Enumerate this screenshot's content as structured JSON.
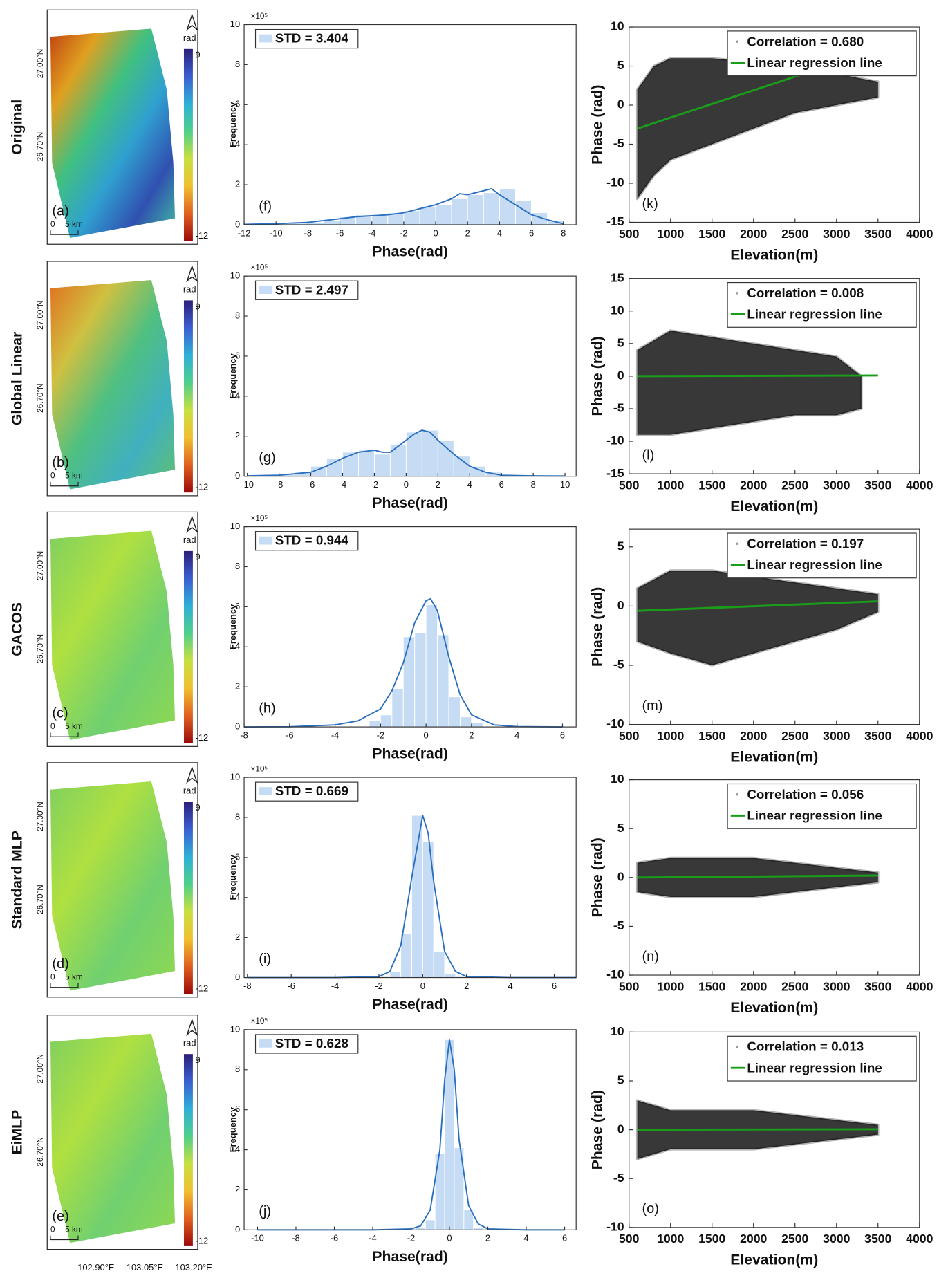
{
  "chart_data": [
    {
      "type": "map",
      "row_label": "Original",
      "panel": "(a)",
      "colorbar_label": "rad",
      "clim": [
        -12,
        9
      ],
      "cticks": [
        9,
        -12
      ],
      "colormap": [
        "#2b1f7a",
        "#3b5fd0",
        "#2fb0d8",
        "#4fd08a",
        "#c8e040",
        "#f0c030",
        "#e06020",
        "#9a0a0a"
      ],
      "colors": [
        "#c04010",
        "#e0a020",
        "#40c080",
        "#30a0d0",
        "#3050b0",
        "#40c0a0"
      ],
      "lat_ticks": [
        "27.00°N",
        "26.70°N"
      ],
      "scale_labels": [
        "0",
        "5 km"
      ]
    },
    {
      "type": "histogram",
      "panel": "(f)",
      "legend": "STD = 3.404",
      "y_multiplier": "×10⁵",
      "bins": [
        -12,
        -11,
        -10,
        -9,
        -8,
        -7,
        -6,
        -5,
        -4,
        -3,
        -2,
        -1,
        0,
        1,
        2,
        3,
        4,
        5,
        6,
        7,
        8
      ],
      "values": [
        0.02,
        0.03,
        0.05,
        0.08,
        0.12,
        0.2,
        0.4,
        0.5,
        0.5,
        0.6,
        0.7,
        0.9,
        1.0,
        1.3,
        1.5,
        1.6,
        1.8,
        1.2,
        0.6,
        0.2
      ],
      "color": "#c6dcf5",
      "kde": {
        "x": [
          -12,
          -10,
          -8,
          -6,
          -5,
          -4,
          -3,
          -2,
          -1,
          0,
          1,
          1.5,
          2,
          2.5,
          3,
          3.5,
          4,
          5,
          6,
          7,
          8
        ],
        "values": [
          0.02,
          0.05,
          0.12,
          0.3,
          0.4,
          0.45,
          0.5,
          0.6,
          0.8,
          1.0,
          1.3,
          1.55,
          1.5,
          1.6,
          1.7,
          1.8,
          1.5,
          1.0,
          0.5,
          0.25,
          0.05
        ],
        "color": "#2a6fbf"
      },
      "xlim": [
        -12,
        8.8
      ],
      "xticks": [
        -12,
        -10,
        -8,
        -6,
        -4,
        -2,
        0,
        2,
        4,
        6,
        8
      ],
      "ylim": [
        0,
        10
      ],
      "yticks": [
        0,
        2,
        4,
        6,
        8,
        10
      ],
      "xlabel": "Phase(rad)",
      "ylabel": "Frequency"
    },
    {
      "type": "scatter",
      "panel": "(k)",
      "series": [
        {
          "name": "Correlation = 0.680",
          "color": "#000000",
          "x": [
            600,
            800,
            1000,
            1500,
            2000,
            2500,
            3000,
            3500
          ],
          "upper": [
            2,
            5,
            6,
            6,
            5.5,
            4.5,
            4,
            3
          ],
          "lower": [
            -12,
            -9,
            -7,
            -5,
            -3,
            -1,
            0,
            1
          ]
        },
        {
          "name": "Linear regression line",
          "color": "#1a9e1a",
          "x": [
            600,
            2600
          ],
          "values": [
            -3,
            4
          ]
        }
      ],
      "xlim": [
        500,
        4000
      ],
      "xticks": [
        500,
        1000,
        1500,
        2000,
        2500,
        3000,
        3500,
        4000
      ],
      "ylim": [
        -15,
        10
      ],
      "yticks": [
        -15,
        -10,
        -5,
        0,
        5,
        10
      ],
      "xlabel": "Elevation(m)",
      "ylabel": "Phase (rad)"
    },
    {
      "type": "map",
      "row_label": "Global Linear",
      "panel": "(b)",
      "colorbar_label": "rad",
      "clim": [
        -12,
        9
      ],
      "cticks": [
        9,
        -12
      ],
      "colormap": [
        "#2b1f7a",
        "#3b5fd0",
        "#2fb0d8",
        "#4fd08a",
        "#c8e040",
        "#f0c030",
        "#e06020",
        "#9a0a0a"
      ],
      "colors": [
        "#e07020",
        "#d0c040",
        "#50c080",
        "#40b0c0",
        "#60c070"
      ],
      "lat_ticks": [
        "27.00°N",
        "26.70°N"
      ],
      "scale_labels": [
        "0",
        "5 km"
      ]
    },
    {
      "type": "histogram",
      "panel": "(g)",
      "legend": "STD = 2.497",
      "y_multiplier": "×10⁵",
      "bins": [
        -10,
        -9,
        -8,
        -7,
        -6,
        -5,
        -4,
        -3,
        -2,
        -1,
        0,
        1,
        2,
        3,
        4,
        5,
        6,
        7,
        8,
        9,
        10
      ],
      "values": [
        0.02,
        0.05,
        0.1,
        0.2,
        0.5,
        0.9,
        1.2,
        1.3,
        1.1,
        1.6,
        2.2,
        2.3,
        1.8,
        1.0,
        0.5,
        0.2,
        0.05,
        0.02,
        0.01,
        0.01
      ],
      "color": "#c6dcf5",
      "kde": {
        "x": [
          -10,
          -8,
          -6,
          -5,
          -4,
          -3,
          -2,
          -1.5,
          -1,
          0,
          0.5,
          1,
          1.5,
          2,
          3,
          4,
          5,
          6,
          8,
          10
        ],
        "values": [
          0.02,
          0.05,
          0.2,
          0.5,
          0.9,
          1.2,
          1.3,
          1.2,
          1.2,
          1.8,
          2.1,
          2.3,
          2.2,
          1.8,
          1.1,
          0.5,
          0.2,
          0.05,
          0.02,
          0.01
        ],
        "color": "#2a6fbf"
      },
      "xlim": [
        -10.2,
        10.7
      ],
      "xticks": [
        -10,
        -8,
        -6,
        -4,
        -2,
        0,
        2,
        4,
        6,
        8,
        10
      ],
      "ylim": [
        0,
        10
      ],
      "yticks": [
        0,
        2,
        4,
        6,
        8,
        10
      ],
      "xlabel": "Phase(rad)",
      "ylabel": "Frequency"
    },
    {
      "type": "scatter",
      "panel": "(l)",
      "series": [
        {
          "name": "Correlation = 0.008",
          "color": "#000000",
          "x": [
            600,
            1000,
            1500,
            2000,
            2500,
            3000,
            3300
          ],
          "upper": [
            4,
            7,
            6,
            5,
            4,
            3,
            0
          ],
          "lower": [
            -9,
            -9,
            -8,
            -7,
            -6,
            -6,
            -5
          ]
        },
        {
          "name": "Linear regression line",
          "color": "#1a9e1a",
          "x": [
            600,
            3500
          ],
          "values": [
            0,
            0.1
          ]
        }
      ],
      "xlim": [
        500,
        4000
      ],
      "xticks": [
        500,
        1000,
        1500,
        2000,
        2500,
        3000,
        3500,
        4000
      ],
      "ylim": [
        -15,
        15
      ],
      "yticks": [
        -15,
        -10,
        -5,
        0,
        5,
        10,
        15
      ],
      "xlabel": "Elevation(m)",
      "ylabel": "Phase (rad)"
    },
    {
      "type": "map",
      "row_label": "GACOS",
      "panel": "(c)",
      "colorbar_label": "rad",
      "clim": [
        -12,
        9
      ],
      "cticks": [
        9,
        -12
      ],
      "colormap": [
        "#2b1f7a",
        "#3b5fd0",
        "#2fb0d8",
        "#4fd08a",
        "#c8e040",
        "#f0c030",
        "#e06020",
        "#9a0a0a"
      ],
      "colors": [
        "#80d060",
        "#b0e040",
        "#70d070",
        "#90d850"
      ],
      "lat_ticks": [
        "27.00°N",
        "26.70°N"
      ],
      "scale_labels": [
        "0",
        "5 km"
      ]
    },
    {
      "type": "histogram",
      "panel": "(h)",
      "legend": "STD = 0.944",
      "y_multiplier": "×10⁵",
      "bins": [
        -2.5,
        -2,
        -1.5,
        -1,
        -0.5,
        0,
        0.5,
        1,
        1.5,
        2,
        2.5
      ],
      "values": [
        0.3,
        0.6,
        1.9,
        4.5,
        4.7,
        6.1,
        4.6,
        1.5,
        0.5,
        0.2
      ],
      "color": "#c6dcf5",
      "kde": {
        "x": [
          -8,
          -6,
          -4,
          -3,
          -2,
          -1.5,
          -1,
          -0.5,
          0,
          0.2,
          0.5,
          1,
          1.5,
          2,
          3,
          4,
          6
        ],
        "values": [
          0,
          0.01,
          0.1,
          0.3,
          0.9,
          1.8,
          3.2,
          5.2,
          6.3,
          6.4,
          5.8,
          3.5,
          1.6,
          0.6,
          0.1,
          0.02,
          0
        ],
        "color": "#2a6fbf"
      },
      "xlim": [
        -8,
        6.6
      ],
      "xticks": [
        -8,
        -6,
        -4,
        -2,
        0,
        2,
        4,
        6
      ],
      "ylim": [
        0,
        10
      ],
      "yticks": [
        0,
        2,
        4,
        6,
        8,
        10
      ],
      "xlabel": "Phase(rad)",
      "ylabel": "Frequency"
    },
    {
      "type": "scatter",
      "panel": "(m)",
      "series": [
        {
          "name": "Correlation = 0.197",
          "color": "#000000",
          "x": [
            600,
            1000,
            1500,
            2000,
            2500,
            3000,
            3500
          ],
          "upper": [
            1.5,
            3,
            3,
            2.5,
            2,
            1.5,
            1
          ],
          "lower": [
            -3,
            -4,
            -5,
            -4,
            -3,
            -2,
            -0.5
          ]
        },
        {
          "name": "Linear regression line",
          "color": "#1a9e1a",
          "x": [
            600,
            3500
          ],
          "values": [
            -0.4,
            0.4
          ]
        }
      ],
      "xlim": [
        500,
        4000
      ],
      "xticks": [
        500,
        1000,
        1500,
        2000,
        2500,
        3000,
        3500,
        4000
      ],
      "ylim": [
        -10,
        6.5
      ],
      "yticks": [
        -10,
        -5,
        0,
        5
      ],
      "xlabel": "Elevation(m)",
      "ylabel": "Phase (rad)"
    },
    {
      "type": "map",
      "row_label": "Standard MLP",
      "panel": "(d)",
      "colorbar_label": "rad",
      "clim": [
        -12,
        9
      ],
      "cticks": [
        9,
        -12
      ],
      "colormap": [
        "#2b1f7a",
        "#3b5fd0",
        "#2fb0d8",
        "#4fd08a",
        "#c8e040",
        "#f0c030",
        "#e06020",
        "#9a0a0a"
      ],
      "colors": [
        "#80d060",
        "#b0e040",
        "#70d070",
        "#90d850"
      ],
      "lat_ticks": [
        "27.00°N",
        "26.70°N"
      ],
      "scale_labels": [
        "0",
        "5 km"
      ]
    },
    {
      "type": "histogram",
      "panel": "(i)",
      "legend": "STD = 0.669",
      "y_multiplier": "×10⁵",
      "bins": [
        -2,
        -1.5,
        -1,
        -0.5,
        0,
        0.5,
        1,
        1.5,
        2
      ],
      "values": [
        0.05,
        0.3,
        2.2,
        8.1,
        6.8,
        1.3,
        0.2,
        0.05
      ],
      "color": "#c6dcf5",
      "kde": {
        "x": [
          -8,
          -4,
          -2,
          -1.5,
          -1,
          -0.5,
          0,
          0.25,
          0.5,
          1,
          1.5,
          2,
          4,
          7
        ],
        "values": [
          0,
          0,
          0.05,
          0.3,
          1.6,
          5.0,
          8.1,
          7.2,
          4.8,
          1.3,
          0.3,
          0.05,
          0,
          0
        ],
        "color": "#2a6fbf"
      },
      "xlim": [
        -8.15,
        7
      ],
      "xticks": [
        -8,
        -6,
        -4,
        -2,
        0,
        2,
        4,
        6
      ],
      "ylim": [
        0,
        10
      ],
      "yticks": [
        0,
        2,
        4,
        6,
        8,
        10
      ],
      "xlabel": "Phase(rad)",
      "ylabel": "Frequency"
    },
    {
      "type": "scatter",
      "panel": "(n)",
      "series": [
        {
          "name": "Correlation = 0.056",
          "color": "#000000",
          "x": [
            600,
            1000,
            1500,
            2000,
            2500,
            3000,
            3500
          ],
          "upper": [
            1.5,
            2,
            2,
            2,
            1.5,
            1,
            0.5
          ],
          "lower": [
            -1.5,
            -2,
            -2,
            -2,
            -1.5,
            -1,
            -0.5
          ]
        },
        {
          "name": "Linear regression line",
          "color": "#1a9e1a",
          "x": [
            600,
            3500
          ],
          "values": [
            0,
            0.2
          ]
        }
      ],
      "xlim": [
        500,
        4000
      ],
      "xticks": [
        500,
        1000,
        1500,
        2000,
        2500,
        3000,
        3500,
        4000
      ],
      "ylim": [
        -10,
        10
      ],
      "yticks": [
        -10,
        -5,
        0,
        5,
        10
      ],
      "xlabel": "Elevation(m)",
      "ylabel": "Phase (rad)"
    },
    {
      "type": "map",
      "row_label": "EiMLP",
      "panel": "(e)",
      "colorbar_label": "rad",
      "clim": [
        -12,
        9
      ],
      "cticks": [
        9,
        -12
      ],
      "colormap": [
        "#2b1f7a",
        "#3b5fd0",
        "#2fb0d8",
        "#4fd08a",
        "#c8e040",
        "#f0c030",
        "#e06020",
        "#9a0a0a"
      ],
      "colors": [
        "#80d060",
        "#b0e040",
        "#70d070",
        "#90d850"
      ],
      "lat_ticks": [
        "27.00°N",
        "26.70°N"
      ],
      "scale_labels": [
        "0",
        "5 km"
      ],
      "lon_ticks": [
        "102.90°E",
        "103.05°E",
        "103.20°E"
      ]
    },
    {
      "type": "histogram",
      "panel": "(j)",
      "legend": "STD = 0.628",
      "y_multiplier": "×10⁵",
      "bins": [
        -1.75,
        -1.25,
        -0.75,
        -0.25,
        0.25,
        0.75,
        1.25,
        1.75
      ],
      "values": [
        0.1,
        0.5,
        3.8,
        9.5,
        4.1,
        1.0,
        0.1
      ],
      "color": "#c6dcf5",
      "kde": {
        "x": [
          -10,
          -4,
          -2,
          -1.5,
          -1,
          -0.5,
          -0.25,
          0,
          0.25,
          0.5,
          1,
          1.5,
          2,
          4,
          6
        ],
        "values": [
          0,
          0,
          0.05,
          0.2,
          1.0,
          4.0,
          7.5,
          9.5,
          8.0,
          4.5,
          1.2,
          0.3,
          0.05,
          0,
          0
        ],
        "color": "#2a6fbf"
      },
      "xlim": [
        -10.7,
        6.6
      ],
      "xticks": [
        -10,
        -8,
        -6,
        -4,
        -2,
        0,
        2,
        4,
        6
      ],
      "ylim": [
        0,
        10
      ],
      "yticks": [
        0,
        2,
        4,
        6,
        8,
        10
      ],
      "xlabel": "Phase(rad)",
      "ylabel": "Frequency"
    },
    {
      "type": "scatter",
      "panel": "(o)",
      "series": [
        {
          "name": "Correlation = 0.013",
          "color": "#000000",
          "x": [
            600,
            1000,
            1500,
            2000,
            2500,
            3000,
            3500
          ],
          "upper": [
            3,
            2,
            2,
            2,
            1.5,
            1,
            0.5
          ],
          "lower": [
            -3,
            -2,
            -2,
            -2,
            -1.5,
            -1,
            -0.5
          ]
        },
        {
          "name": "Linear regression line",
          "color": "#1a9e1a",
          "x": [
            600,
            3500
          ],
          "values": [
            0,
            0.05
          ]
        }
      ],
      "xlim": [
        500,
        4000
      ],
      "xticks": [
        500,
        1000,
        1500,
        2000,
        2500,
        3000,
        3500,
        4000
      ],
      "ylim": [
        -10,
        10
      ],
      "yticks": [
        -10,
        -5,
        0,
        5,
        10
      ],
      "xlabel": "Elevation(m)",
      "ylabel": "Phase (rad)"
    }
  ]
}
